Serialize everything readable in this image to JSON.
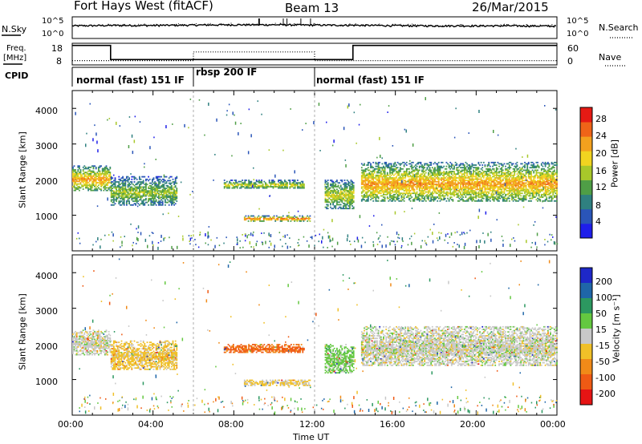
{
  "header": {
    "title": "Fort Hays West (fitACF)",
    "beam": "Beam 13",
    "date": "26/Mar/2015"
  },
  "noise_panel": {
    "left_label": "N.Sky",
    "right_label": "N.Search",
    "left_ticks": [
      "10^5",
      "10^0"
    ],
    "right_ticks": [
      "10^5",
      "10^0"
    ]
  },
  "freq_panel": {
    "left_label_line1": "Freq.",
    "left_label_line2": "[MHz]",
    "right_label": "Nave",
    "left_ticks": [
      "18",
      "8"
    ],
    "right_ticks": [
      "60",
      "0"
    ]
  },
  "cpid_panel": {
    "label": "CPID",
    "modes": [
      {
        "name": "normal (fast) 151 IF",
        "start_hour": 0,
        "end_hour": 6
      },
      {
        "name": "rbsp 200 IF",
        "start_hour": 6,
        "end_hour": 12
      },
      {
        "name": "normal (fast) 151 IF",
        "start_hour": 12,
        "end_hour": 24
      }
    ]
  },
  "axes": {
    "xlabel": "Time UT",
    "ylabel": "Slant Range [km]",
    "x_ticks": [
      "00:00",
      "04:00",
      "08:00",
      "12:00",
      "16:00",
      "20:00",
      "00:00"
    ],
    "y_ticks": [
      "1000",
      "2000",
      "3000",
      "4000"
    ]
  },
  "colorbars": {
    "power_label": "Power [dB]",
    "power_ticks": [
      "4",
      "8",
      "12",
      "16",
      "20",
      "24",
      "28"
    ],
    "power_colors": [
      "#1e1eea",
      "#2a55b8",
      "#2f8080",
      "#4f9e46",
      "#a8c82a",
      "#f1d420",
      "#f3a11e",
      "#ef6418",
      "#e61a14"
    ],
    "velocity_label": "Velocity [m s⁻¹]",
    "velocity_ticks": [
      "200",
      "100",
      "50",
      "15",
      "-15",
      "-50",
      "-100",
      "-200"
    ],
    "velocity_colors": [
      "#1e28c8",
      "#1f66a8",
      "#2c9860",
      "#64c840",
      "#c8c8c8",
      "#f0c028",
      "#f08a18",
      "#ef5a14",
      "#e61414"
    ]
  },
  "chart_data": [
    {
      "type": "line",
      "title": "N.Sky / N.Search",
      "x_range_hours": [
        0,
        24
      ],
      "scale": "log",
      "ylim": [
        1,
        100000
      ],
      "series": [
        {
          "name": "N.Sky",
          "x": [
            0,
            2,
            4,
            6,
            8,
            10,
            12,
            14,
            16,
            18,
            20,
            22,
            24
          ],
          "values": [
            800,
            1000,
            1000,
            1200,
            1400,
            1400,
            1200,
            1100,
            900,
            800,
            800,
            800,
            700
          ]
        }
      ]
    },
    {
      "type": "line",
      "title": "Freq. / Nave",
      "x_range_hours": [
        0,
        24
      ],
      "ylim": [
        8,
        18
      ],
      "series": [
        {
          "name": "Freq.",
          "x": [
            0,
            1.9,
            1.9,
            6,
            6,
            12,
            12,
            13.9,
            13.9,
            24
          ],
          "values": [
            17,
            17,
            10.5,
            10.5,
            10.5,
            10.5,
            10.5,
            10.5,
            17,
            17
          ]
        },
        {
          "name": "Nave",
          "x": [
            0,
            6,
            6,
            12,
            12,
            24
          ],
          "values": [
            10,
            10,
            14,
            14,
            10,
            10
          ]
        }
      ]
    },
    {
      "type": "heatmap",
      "title": "Power [dB]",
      "x_range_hours": [
        0,
        24
      ],
      "ylim": [
        0,
        4500
      ],
      "value_range": [
        0,
        30
      ],
      "regions": [
        {
          "t": [
            0.0,
            1.9
          ],
          "range_km": [
            1700,
            2400
          ],
          "value": 18
        },
        {
          "t": [
            1.9,
            5.2
          ],
          "range_km": [
            1300,
            2100
          ],
          "value": 12
        },
        {
          "t": [
            7.5,
            11.5
          ],
          "range_km": [
            1750,
            2000
          ],
          "value": 14
        },
        {
          "t": [
            8.5,
            11.8
          ],
          "range_km": [
            850,
            1000
          ],
          "value": 20
        },
        {
          "t": [
            12.5,
            13.9
          ],
          "range_km": [
            1200,
            2000
          ],
          "value": 14
        },
        {
          "t": [
            14.3,
            24.0
          ],
          "range_km": [
            1400,
            2500
          ],
          "value": 18
        }
      ]
    },
    {
      "type": "heatmap",
      "title": "Velocity [m s-1]",
      "x_range_hours": [
        0,
        24
      ],
      "ylim": [
        0,
        4500
      ],
      "value_range": [
        -200,
        200
      ],
      "regions": [
        {
          "t": [
            0.0,
            1.9
          ],
          "range_km": [
            1700,
            2400
          ],
          "value": 0
        },
        {
          "t": [
            1.9,
            5.2
          ],
          "range_km": [
            1300,
            2100
          ],
          "value": -40
        },
        {
          "t": [
            7.5,
            11.5
          ],
          "range_km": [
            1750,
            2000
          ],
          "value": -120
        },
        {
          "t": [
            8.5,
            11.8
          ],
          "range_km": [
            850,
            1000
          ],
          "value": -30
        },
        {
          "t": [
            12.5,
            13.9
          ],
          "range_km": [
            1200,
            2000
          ],
          "value": 40
        },
        {
          "t": [
            14.3,
            24.0
          ],
          "range_km": [
            1400,
            2500
          ],
          "value": 0
        }
      ]
    }
  ]
}
